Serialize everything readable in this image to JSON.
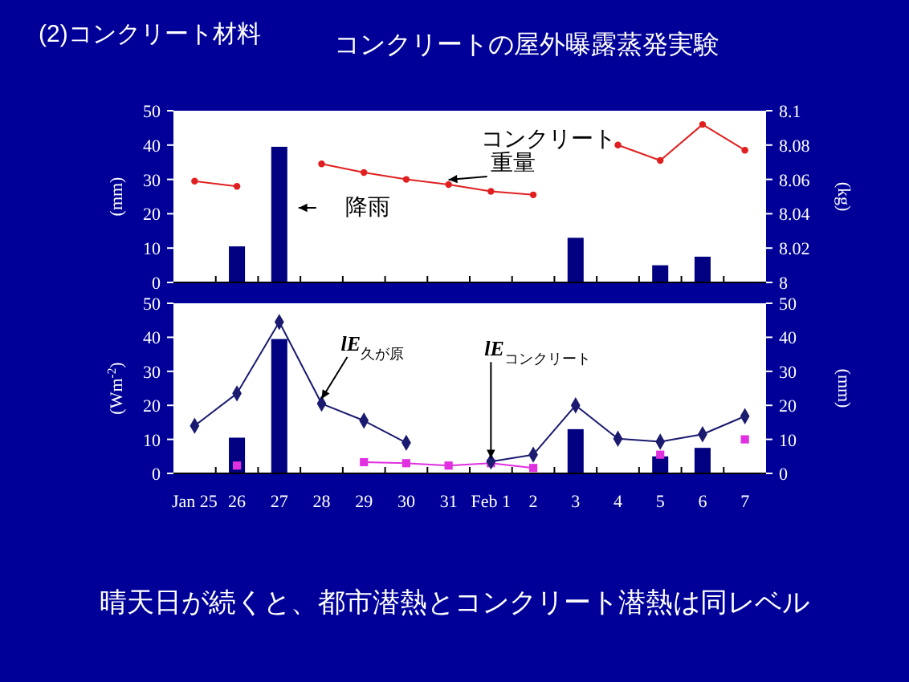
{
  "chart_data": [
    {
      "type": "bar",
      "title": "コンクリートの屋外曝露蒸発実験",
      "annotations": [
        "(2)コンクリート材料"
      ],
      "categories": [
        null,
        null,
        null,
        null,
        null,
        null,
        null,
        null,
        null,
        null,
        null,
        null,
        null,
        null
      ],
      "ylabel": "(mm)",
      "y2label": "(kg)",
      "ylim": [
        0,
        50
      ],
      "yticks": [
        0,
        10,
        20,
        30,
        40,
        50
      ],
      "y2lim": [
        8,
        8.1
      ],
      "y2ticks": [
        8,
        8.02,
        8.04,
        8.06,
        8.08,
        8.1
      ],
      "tick_labels": "y",
      "series": [
        {
          "name": "降雨",
          "color": "#000080",
          "values": [
            null,
            10.5,
            39.5,
            null,
            null,
            null,
            null,
            null,
            null,
            13,
            null,
            5,
            7.5,
            null
          ]
        },
        {
          "name": "コンクリート重量",
          "type": "line",
          "axis": "y2",
          "marker": "circle",
          "color": "#e02020",
          "values": [
            8.059,
            8.056,
            null,
            8.069,
            8.064,
            8.06,
            8.057,
            8.053,
            8.051,
            null,
            8.08,
            8.071,
            8.092,
            8.077
          ]
        }
      ]
    },
    {
      "type": "line",
      "annotations": [
        "晴天日が続くと、都市潜熱とコンクリート潜熱は同レベル"
      ],
      "categories": [
        "Jan 25",
        "26",
        "27",
        "28",
        "29",
        "30",
        "31",
        "Feb 1",
        "2",
        "3",
        "4",
        "5",
        "6",
        "7"
      ],
      "ylabel": "(Wm$^{-2}$)",
      "y2label": "(mm)",
      "ylim": [
        0,
        50
      ],
      "yticks": [
        0,
        10,
        20,
        30,
        40,
        50
      ],
      "y2lim": [
        0,
        50
      ],
      "y2ticks": [
        0,
        10,
        20,
        30,
        40,
        50
      ],
      "series": [
        {
          "type": "bar",
          "axis": "y2",
          "color": "#000080",
          "values": [
            null,
            10.5,
            39.5,
            null,
            null,
            null,
            null,
            null,
            null,
            13,
            null,
            5,
            7.5,
            null
          ]
        },
        {
          "name": "lE$_{コンクリート}$",
          "marker": "square",
          "color": "#e030e0",
          "values": [
            null,
            2.3,
            null,
            null,
            3.3,
            3,
            2.3,
            3,
            1.6,
            null,
            null,
            5.5,
            null,
            10
          ]
        },
        {
          "name": "lE$_{久が原}$",
          "marker": "diamond",
          "color": "#1a1a70",
          "values": [
            14,
            23.5,
            44.5,
            20.5,
            15.5,
            9,
            null,
            3.5,
            5.5,
            20,
            10.2,
            9.3,
            11.5,
            16.8
          ]
        }
      ]
    }
  ]
}
